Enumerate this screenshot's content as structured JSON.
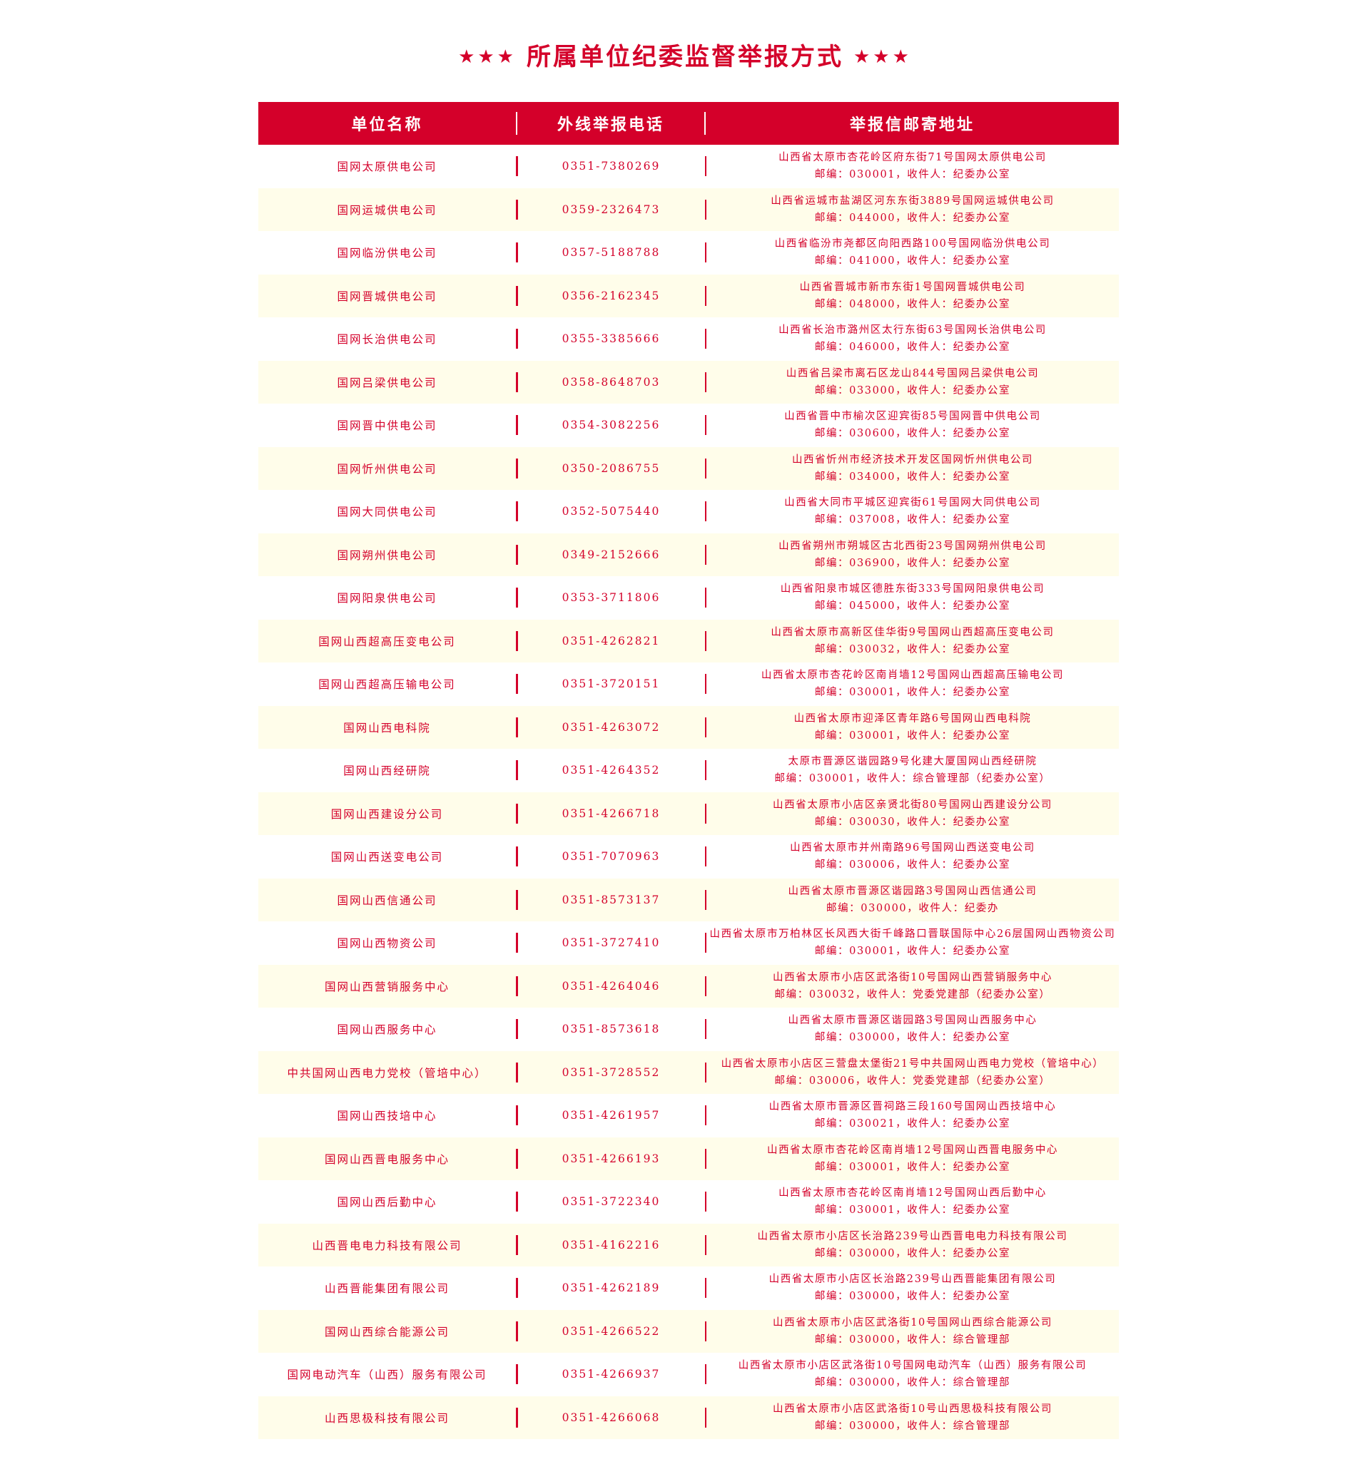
{
  "title": "所属单位纪委监督举报方式",
  "stars": "★★★",
  "brand_color": "#d4002a",
  "stripe_color": "#fffdea",
  "headers": {
    "unit": "单位名称",
    "phone": "外线举报电话",
    "address": "举报信邮寄地址"
  },
  "rows": [
    {
      "unit": "国网太原供电公司",
      "phone": "0351-7380269",
      "address": "山西省太原市杏花岭区府东街71号国网太原供电公司",
      "postal": "邮编：030001，收件人：纪委办公室"
    },
    {
      "unit": "国网运城供电公司",
      "phone": "0359-2326473",
      "address": "山西省运城市盐湖区河东东街3889号国网运城供电公司",
      "postal": "邮编：044000，收件人：纪委办公室"
    },
    {
      "unit": "国网临汾供电公司",
      "phone": "0357-5188788",
      "address": "山西省临汾市尧都区向阳西路100号国网临汾供电公司",
      "postal": "邮编：041000，收件人：纪委办公室"
    },
    {
      "unit": "国网晋城供电公司",
      "phone": "0356-2162345",
      "address": "山西省晋城市新市东街1号国网晋城供电公司",
      "postal": "邮编：048000，收件人：纪委办公室"
    },
    {
      "unit": "国网长治供电公司",
      "phone": "0355-3385666",
      "address": "山西省长治市潞州区太行东街63号国网长治供电公司",
      "postal": "邮编：046000，收件人：纪委办公室"
    },
    {
      "unit": "国网吕梁供电公司",
      "phone": "0358-8648703",
      "address": "山西省吕梁市离石区龙山844号国网吕梁供电公司",
      "postal": "邮编：033000，收件人：纪委办公室"
    },
    {
      "unit": "国网晋中供电公司",
      "phone": "0354-3082256",
      "address": "山西省晋中市榆次区迎宾街85号国网晋中供电公司",
      "postal": "邮编：030600，收件人：纪委办公室"
    },
    {
      "unit": "国网忻州供电公司",
      "phone": "0350-2086755",
      "address": "山西省忻州市经济技术开发区国网忻州供电公司",
      "postal": "邮编：034000，收件人：纪委办公室"
    },
    {
      "unit": "国网大同供电公司",
      "phone": "0352-5075440",
      "address": "山西省大同市平城区迎宾街61号国网大同供电公司",
      "postal": "邮编：037008，收件人：纪委办公室"
    },
    {
      "unit": "国网朔州供电公司",
      "phone": "0349-2152666",
      "address": "山西省朔州市朔城区古北西街23号国网朔州供电公司",
      "postal": "邮编：036900，收件人：纪委办公室"
    },
    {
      "unit": "国网阳泉供电公司",
      "phone": "0353-3711806",
      "address": "山西省阳泉市城区德胜东街333号国网阳泉供电公司",
      "postal": "邮编：045000，收件人：纪委办公室"
    },
    {
      "unit": "国网山西超高压变电公司",
      "phone": "0351-4262821",
      "address": "山西省太原市高新区佳华街9号国网山西超高压变电公司",
      "postal": "邮编：030032，收件人：纪委办公室"
    },
    {
      "unit": "国网山西超高压输电公司",
      "phone": "0351-3720151",
      "address": "山西省太原市杏花岭区南肖墙12号国网山西超高压输电公司",
      "postal": "邮编：030001，收件人：纪委办公室"
    },
    {
      "unit": "国网山西电科院",
      "phone": "0351-4263072",
      "address": "山西省太原市迎泽区青年路6号国网山西电科院",
      "postal": "邮编：030001，收件人：纪委办公室"
    },
    {
      "unit": "国网山西经研院",
      "phone": "0351-4264352",
      "address": "太原市晋源区谐园路9号化建大厦国网山西经研院",
      "postal": "邮编：030001，收件人：综合管理部（纪委办公室）"
    },
    {
      "unit": "国网山西建设分公司",
      "phone": "0351-4266718",
      "address": "山西省太原市小店区亲贤北街80号国网山西建设分公司",
      "postal": "邮编：030030，收件人：纪委办公室"
    },
    {
      "unit": "国网山西送变电公司",
      "phone": "0351-7070963",
      "address": "山西省太原市并州南路96号国网山西送变电公司",
      "postal": "邮编：030006，收件人：纪委办公室"
    },
    {
      "unit": "国网山西信通公司",
      "phone": "0351-8573137",
      "address": "山西省太原市晋源区谐园路3号国网山西信通公司",
      "postal": "邮编：030000，收件人：纪委办"
    },
    {
      "unit": "国网山西物资公司",
      "phone": "0351-3727410",
      "address": "山西省太原市万柏林区长风西大街千峰路口晋联国际中心26层国网山西物资公司",
      "postal": "邮编：030001，收件人：纪委办公室"
    },
    {
      "unit": "国网山西营销服务中心",
      "phone": "0351-4264046",
      "address": "山西省太原市小店区武洛街10号国网山西营销服务中心",
      "postal": "邮编：030032，收件人：党委党建部（纪委办公室）"
    },
    {
      "unit": "国网山西服务中心",
      "phone": "0351-8573618",
      "address": "山西省太原市晋源区谐园路3号国网山西服务中心",
      "postal": "邮编：030000，收件人：纪委办公室"
    },
    {
      "unit": "中共国网山西电力党校（管培中心）",
      "phone": "0351-3728552",
      "address": "山西省太原市小店区三营盘太堡街21号中共国网山西电力党校（管培中心）",
      "postal": "邮编：030006，收件人：党委党建部（纪委办公室）"
    },
    {
      "unit": "国网山西技培中心",
      "phone": "0351-4261957",
      "address": "山西省太原市晋源区晋祠路三段160号国网山西技培中心",
      "postal": "邮编：030021，收件人：纪委办公室"
    },
    {
      "unit": "国网山西晋电服务中心",
      "phone": "0351-4266193",
      "address": "山西省太原市杏花岭区南肖墙12号国网山西晋电服务中心",
      "postal": "邮编：030001，收件人：纪委办公室"
    },
    {
      "unit": "国网山西后勤中心",
      "phone": "0351-3722340",
      "address": "山西省太原市杏花岭区南肖墙12号国网山西后勤中心",
      "postal": "邮编：030001，收件人：纪委办公室"
    },
    {
      "unit": "山西晋电电力科技有限公司",
      "phone": "0351-4162216",
      "address": "山西省太原市小店区长治路239号山西晋电电力科技有限公司",
      "postal": "邮编：030000，收件人：纪委办公室"
    },
    {
      "unit": "山西晋能集团有限公司",
      "phone": "0351-4262189",
      "address": "山西省太原市小店区长治路239号山西晋能集团有限公司",
      "postal": "邮编：030000，收件人：纪委办公室"
    },
    {
      "unit": "国网山西综合能源公司",
      "phone": "0351-4266522",
      "address": "山西省太原市小店区武洛街10号国网山西综合能源公司",
      "postal": "邮编：030000，收件人：综合管理部"
    },
    {
      "unit": "国网电动汽车（山西）服务有限公司",
      "phone": "0351-4266937",
      "address": "山西省太原市小店区武洛街10号国网电动汽车（山西）服务有限公司",
      "postal": "邮编：030000，收件人：综合管理部"
    },
    {
      "unit": "山西思极科技有限公司",
      "phone": "0351-4266068",
      "address": "山西省太原市小店区武洛街10号山西思极科技有限公司",
      "postal": "邮编：030000，收件人：综合管理部"
    }
  ]
}
